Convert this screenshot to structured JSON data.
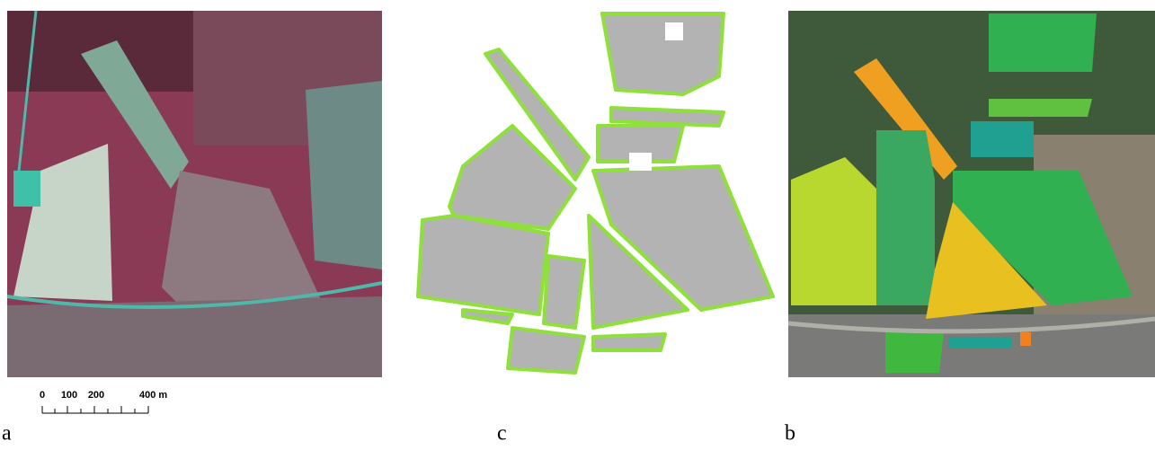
{
  "panels": [
    {
      "label": "a"
    },
    {
      "label": "c"
    },
    {
      "label": "b"
    }
  ],
  "scale_bar": {
    "labels": [
      "0",
      "100",
      "200",
      "400 m"
    ]
  }
}
